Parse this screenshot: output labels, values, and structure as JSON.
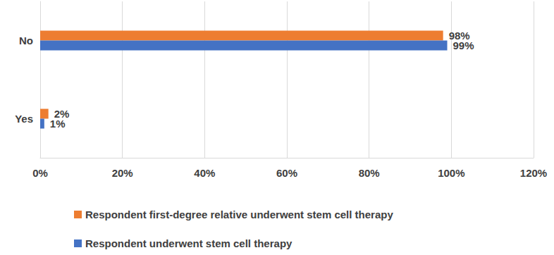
{
  "chart_data": {
    "type": "bar",
    "orientation": "horizontal",
    "categories": [
      "No",
      "Yes"
    ],
    "series": [
      {
        "name": "Respondent first-degree relative underwent stem cell therapy",
        "color": "#ed7d31",
        "values": [
          98,
          2
        ],
        "value_labels": [
          "98%",
          "2%"
        ]
      },
      {
        "name": "Respondent underwent stem cell therapy",
        "color": "#4472c4",
        "values": [
          99,
          1
        ],
        "value_labels": [
          "99%",
          "1%"
        ]
      }
    ],
    "xlim": [
      0,
      120
    ],
    "xticks": [
      {
        "value": 0,
        "label": "0%"
      },
      {
        "value": 20,
        "label": "20%"
      },
      {
        "value": 40,
        "label": "40%"
      },
      {
        "value": 60,
        "label": "60%"
      },
      {
        "value": 80,
        "label": "80%"
      },
      {
        "value": 100,
        "label": "100%"
      },
      {
        "value": 120,
        "label": "120%"
      }
    ],
    "grid": true,
    "legend": "bottom",
    "data_labels": true
  }
}
